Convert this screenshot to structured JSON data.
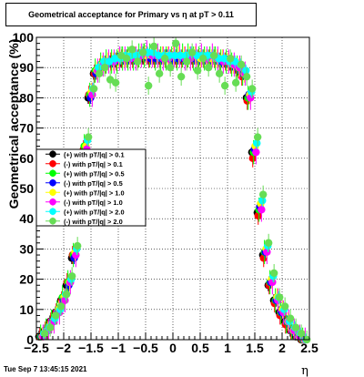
{
  "title": "Geometrical acceptance for Primary vs   η at pT > 0.11",
  "footer_date": "Tue Sep  7 13:45:15 2021",
  "chart_data": {
    "type": "scatter",
    "title": "Geometrical acceptance for Primary vs   η at pT > 0.11",
    "xlabel": "η",
    "ylabel": "Geometrical acceptance (%)",
    "xlim": [
      -2.5,
      2.5
    ],
    "ylim": [
      0,
      100
    ],
    "grid": true,
    "legend_position": "left-middle",
    "x_ticks": [
      "−2.5",
      "−2",
      "−1.5",
      "−1",
      "−0.5",
      "0",
      "0.5",
      "1",
      "1.5",
      "2",
      "2.5"
    ],
    "y_ticks": [
      "0",
      "10",
      "20",
      "30",
      "40",
      "50",
      "60",
      "70",
      "80",
      "90",
      "100"
    ],
    "x": [
      -2.4,
      -2.3,
      -2.2,
      -2.1,
      -2.0,
      -1.9,
      -1.8,
      -1.7,
      -1.6,
      -1.5,
      -1.4,
      -1.3,
      -1.2,
      -1.1,
      -1.0,
      -0.9,
      -0.8,
      -0.7,
      -0.6,
      -0.5,
      -0.4,
      -0.3,
      -0.2,
      -0.1,
      0.0,
      0.1,
      0.2,
      0.3,
      0.4,
      0.5,
      0.6,
      0.7,
      0.8,
      0.9,
      1.0,
      1.1,
      1.2,
      1.3,
      1.4,
      1.5,
      1.6,
      1.7,
      1.8,
      1.9,
      2.0,
      2.1,
      2.2,
      2.3,
      2.4
    ],
    "series": [
      {
        "name": "(+) with pT/|q| > 0.1",
        "color": "#000000",
        "values": [
          1,
          3,
          6,
          9,
          13,
          18,
          27,
          40,
          62,
          80,
          88,
          90,
          91,
          92,
          92,
          92,
          93,
          93,
          93,
          93,
          93,
          93,
          93,
          93,
          93,
          93,
          93,
          93,
          93,
          93,
          93,
          93,
          93,
          92,
          92,
          91,
          90,
          88,
          80,
          62,
          42,
          28,
          18,
          13,
          9,
          6,
          3,
          1,
          0
        ]
      },
      {
        "name": "(-) with pT/|q| > 0.1",
        "color": "#ff0000",
        "values": [
          1,
          3,
          6,
          9,
          13,
          19,
          28,
          42,
          63,
          81,
          88,
          90,
          91,
          92,
          92,
          93,
          93,
          93,
          93,
          94,
          93,
          93,
          93,
          93,
          93,
          93,
          93,
          93,
          93,
          93,
          93,
          93,
          93,
          92,
          92,
          91,
          90,
          87,
          79,
          60,
          41,
          27,
          18,
          12,
          8,
          5,
          3,
          1,
          0
        ]
      },
      {
        "name": "(+) with pT/|q| > 0.5",
        "color": "#00ff00",
        "values": [
          1,
          3,
          6,
          9,
          14,
          19,
          28,
          43,
          64,
          81,
          89,
          91,
          92,
          92,
          92,
          93,
          93,
          93,
          94,
          94,
          94,
          93,
          93,
          93,
          93,
          93,
          94,
          94,
          93,
          93,
          93,
          93,
          93,
          92,
          92,
          91,
          90,
          88,
          80,
          62,
          43,
          29,
          19,
          13,
          9,
          6,
          3,
          1,
          0
        ]
      },
      {
        "name": "(-) with pT/|q| > 0.5",
        "color": "#0000ff",
        "values": [
          1,
          3,
          6,
          9,
          13,
          18,
          27,
          41,
          62,
          80,
          88,
          90,
          91,
          92,
          93,
          93,
          93,
          93,
          94,
          94,
          93,
          93,
          93,
          94,
          93,
          93,
          93,
          93,
          93,
          93,
          93,
          93,
          93,
          92,
          92,
          91,
          90,
          88,
          81,
          63,
          44,
          29,
          19,
          13,
          9,
          6,
          3,
          1,
          0
        ]
      },
      {
        "name": "(+) with pT/|q| > 1.0",
        "color": "#ffff00",
        "values": [
          1,
          3,
          6,
          10,
          14,
          19,
          29,
          43,
          64,
          82,
          89,
          91,
          92,
          92,
          93,
          93,
          94,
          94,
          94,
          94,
          94,
          94,
          94,
          94,
          94,
          94,
          94,
          94,
          94,
          93,
          93,
          93,
          93,
          93,
          92,
          91,
          90,
          88,
          81,
          64,
          45,
          30,
          20,
          14,
          10,
          6,
          3,
          1,
          0
        ]
      },
      {
        "name": "(-) with pT/|q| > 1.0",
        "color": "#ff00ff",
        "values": [
          1,
          3,
          6,
          9,
          13,
          19,
          28,
          42,
          63,
          81,
          89,
          91,
          92,
          92,
          93,
          93,
          93,
          93,
          94,
          95,
          94,
          94,
          93,
          93,
          94,
          94,
          93,
          93,
          94,
          94,
          93,
          94,
          93,
          92,
          92,
          91,
          90,
          88,
          80,
          62,
          43,
          29,
          19,
          13,
          9,
          6,
          3,
          1,
          0
        ]
      },
      {
        "name": "(+) with pT/|q| > 2.0",
        "color": "#00ffff",
        "values": [
          2,
          4,
          7,
          10,
          15,
          20,
          30,
          45,
          66,
          83,
          90,
          92,
          92,
          93,
          93,
          94,
          94,
          94,
          95,
          95,
          95,
          94,
          94,
          94,
          94,
          94,
          94,
          95,
          94,
          94,
          94,
          94,
          93,
          93,
          92,
          92,
          91,
          89,
          82,
          65,
          46,
          31,
          21,
          14,
          10,
          6,
          4,
          2,
          0
        ]
      },
      {
        "name": "(-) with pT/|q| > 2.0",
        "color": "#66dd55",
        "values": [
          2,
          4,
          8,
          11,
          15,
          21,
          31,
          46,
          67,
          83,
          88,
          90,
          86,
          85,
          94,
          93,
          96,
          92,
          95,
          84,
          97,
          88,
          93,
          90,
          98,
          87,
          92,
          95,
          89,
          93,
          90,
          94,
          88,
          84,
          93,
          85,
          91,
          87,
          83,
          67,
          48,
          32,
          22,
          14,
          11,
          7,
          4,
          2,
          0
        ]
      }
    ]
  }
}
